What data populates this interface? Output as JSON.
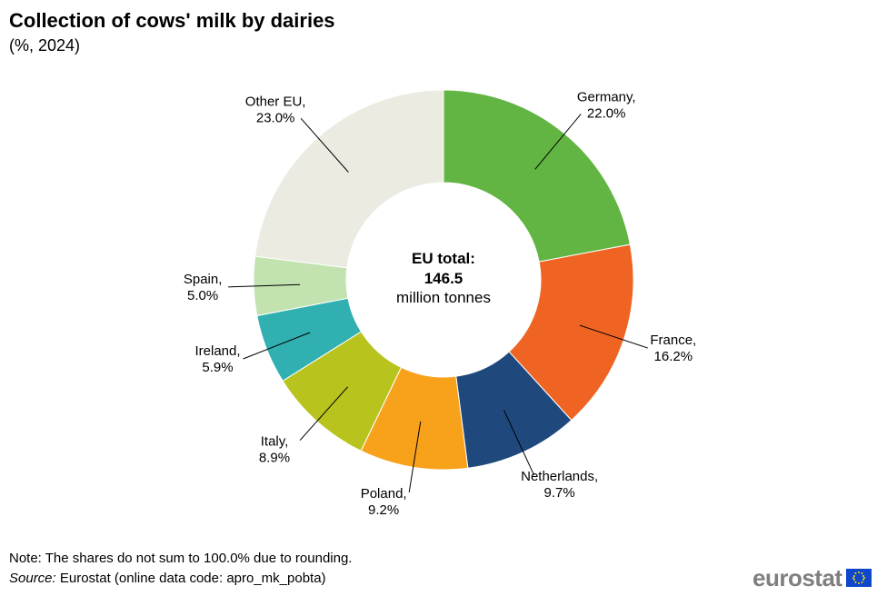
{
  "header": {
    "title": "Collection of cows' milk by dairies",
    "subtitle": "(%, 2024)"
  },
  "chart_data": {
    "type": "pie",
    "donut": true,
    "center_label": {
      "line1": "EU total:",
      "line2": "146.5",
      "line3": "million tonnes"
    },
    "slices": [
      {
        "name": "Germany",
        "value": 22.0,
        "label": "22.0%",
        "color": "#62b543"
      },
      {
        "name": "France",
        "value": 16.2,
        "label": "16.2%",
        "color": "#ef6423"
      },
      {
        "name": "Netherlands",
        "value": 9.7,
        "label": "9.7%",
        "color": "#1f497d"
      },
      {
        "name": "Poland",
        "value": 9.2,
        "label": "9.2%",
        "color": "#f8a11b"
      },
      {
        "name": "Italy",
        "value": 8.9,
        "label": "8.9%",
        "color": "#b8c31e"
      },
      {
        "name": "Ireland",
        "value": 5.9,
        "label": "5.9%",
        "color": "#31b0b2"
      },
      {
        "name": "Spain",
        "value": 5.0,
        "label": "5.0%",
        "color": "#c2e2b0"
      },
      {
        "name": "Other EU",
        "value": 23.0,
        "label": "23.0%",
        "color": "#ecebe1"
      }
    ]
  },
  "footer": {
    "note": "Note: The shares do not sum to 100.0% due to rounding.",
    "source_prefix": "Source:",
    "source_text": " Eurostat (online data code: apro_mk_pobta)",
    "logo_text": "eurostat"
  }
}
